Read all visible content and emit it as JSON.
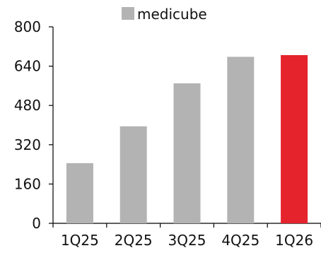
{
  "chart_data": {
    "type": "bar",
    "title": "",
    "xlabel": "",
    "ylabel": "",
    "categories": [
      "1Q25",
      "2Q25",
      "3Q25",
      "4Q25",
      "1Q26"
    ],
    "series": [
      {
        "name": "medicube",
        "values": [
          245,
          395,
          570,
          678,
          685
        ]
      }
    ],
    "highlight_index": 4,
    "ylim": [
      0,
      800
    ],
    "yticks": [
      "0",
      "160",
      "320",
      "480",
      "640",
      "800"
    ],
    "ytick_values": [
      0,
      160,
      320,
      480,
      640,
      800
    ],
    "grid": false,
    "legend_position": "top-center",
    "colors": {
      "bar": "#b3b3b3",
      "highlight": "#e5232d",
      "axis": "#000000"
    }
  }
}
